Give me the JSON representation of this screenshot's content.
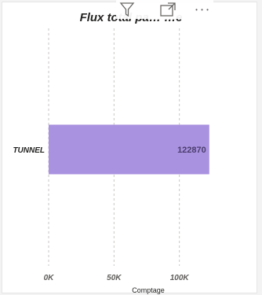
{
  "header": {
    "filter_icon": "filter-icon",
    "focus_icon": "focus-mode-icon",
    "more_icon": "more-options-icon",
    "more_glyph": "• • •"
  },
  "colors": {
    "bar": "#a992e0",
    "grid": "#c8c6c4",
    "data_label": "#4b3d6e"
  },
  "chart_data": {
    "type": "bar",
    "orientation": "horizontal",
    "title": "Flux total pa… …e",
    "categories": [
      "TUNNEL"
    ],
    "values": [
      122870
    ],
    "data_labels": [
      "122870"
    ],
    "xlabel": "Comptage",
    "ylabel": "",
    "xlim": [
      0,
      150000
    ],
    "xticks": [
      0,
      50000,
      100000
    ],
    "xtick_labels": [
      "0K",
      "50K",
      "100K"
    ],
    "grid": true,
    "grid_style": "dashed-vertical"
  }
}
